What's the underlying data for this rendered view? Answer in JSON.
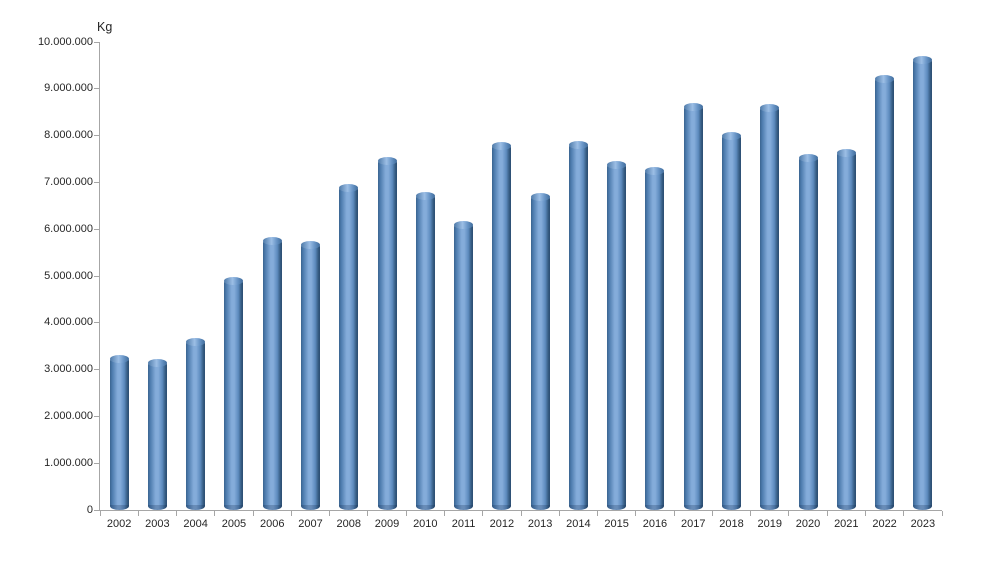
{
  "chart_data": {
    "type": "bar",
    "title": "",
    "xlabel": "",
    "ylabel": "Kg",
    "y_axis_unit_label": "Kg",
    "legend": "none",
    "grid": "off",
    "ylim": [
      0,
      10000000
    ],
    "y_tick_interval": 1000000,
    "y_tick_labels": [
      "0",
      "1.000.000",
      "2.000.000",
      "3.000.000",
      "4.000.000",
      "5.000.000",
      "6.000.000",
      "7.000.000",
      "8.000.000",
      "9.000.000",
      "10.000.000"
    ],
    "categories": [
      "2002",
      "2003",
      "2004",
      "2005",
      "2006",
      "2007",
      "2008",
      "2009",
      "2010",
      "2011",
      "2012",
      "2013",
      "2014",
      "2015",
      "2016",
      "2017",
      "2018",
      "2019",
      "2020",
      "2021",
      "2022",
      "2023"
    ],
    "values": [
      3300000,
      3200000,
      3650000,
      4950000,
      5820000,
      5730000,
      6950000,
      7520000,
      6770000,
      6150000,
      7840000,
      6750000,
      7870000,
      7440000,
      7300000,
      8680000,
      8050000,
      8650000,
      7590000,
      7700000,
      9280000,
      9680000
    ],
    "bar_style": "3d-cylinder",
    "bar_color_center": "#84acda",
    "bar_color_edge": "#2b4d72",
    "axis_color": "#a6a6a6",
    "text_color": "#262626",
    "background_color": "#ffffff"
  }
}
